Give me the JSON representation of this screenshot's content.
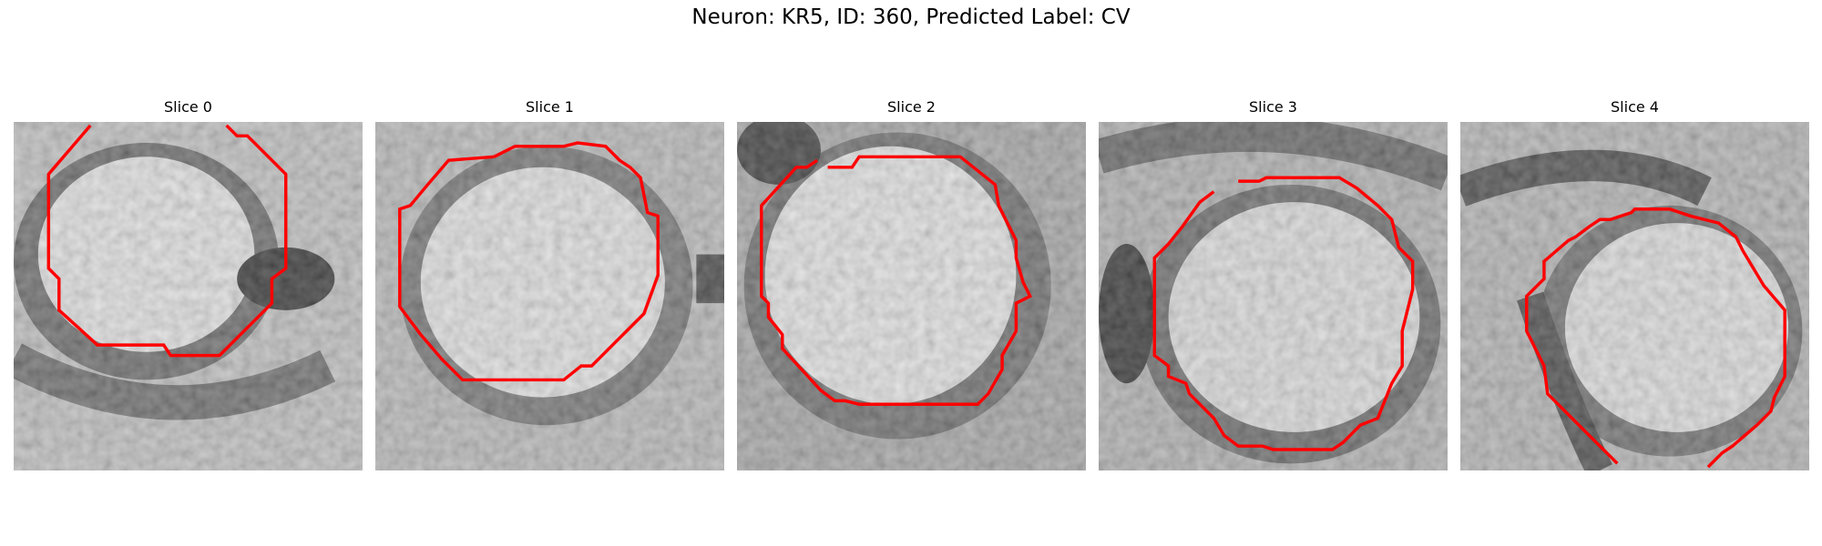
{
  "figure": {
    "title": "Neuron: KR5, ID: 360, Predicted Label: CV",
    "contour_color": "#ff0000"
  },
  "panels": [
    {
      "title": "Slice 0"
    },
    {
      "title": "Slice 1"
    },
    {
      "title": "Slice 2"
    },
    {
      "title": "Slice 3"
    },
    {
      "title": "Slice 4"
    }
  ]
}
